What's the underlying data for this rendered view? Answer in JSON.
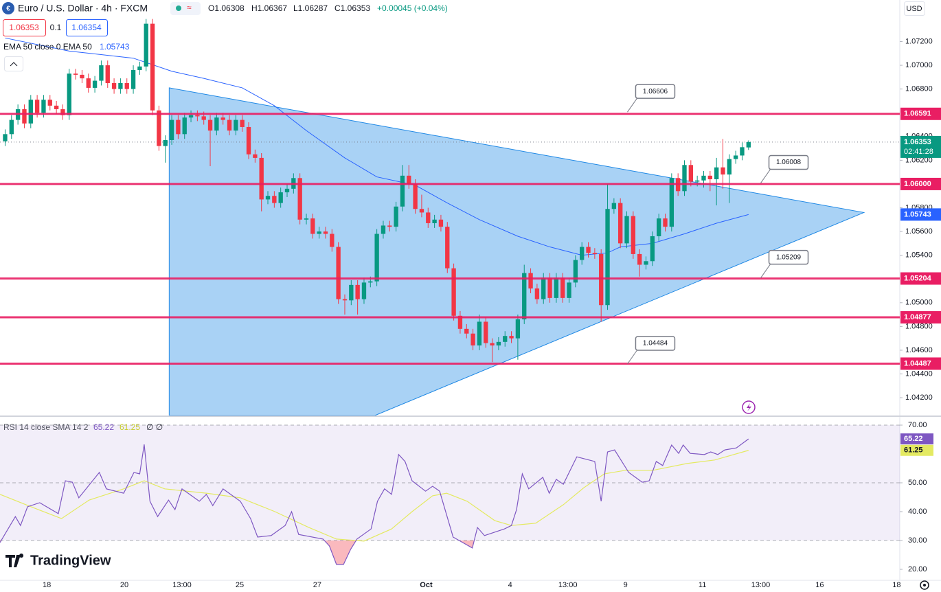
{
  "chart_data": [
    {
      "type": "candlestick",
      "title": "Euro / U.S. Dollar · 4h · FXCM",
      "ohlc_text": [
        "O1.06308",
        "H1.06367",
        "L1.06287",
        "C1.06353",
        "+0.00045 (+0.04%)"
      ],
      "sell_price": "1.06353",
      "spread": "0.1",
      "buy_price": "1.06354",
      "indicator": "EMA 50 close 0 EMA 50",
      "currency": "USD",
      "up_color": "#089981",
      "down_color": "#f23645",
      "xlim": [
        -0.8,
        139.6
      ],
      "ylim": [
        1.0405,
        1.0755
      ],
      "yticks": [
        {
          "value": 1.072,
          "label": "1.07200"
        },
        {
          "value": 1.07,
          "label": "1.07000"
        },
        {
          "value": 1.068,
          "label": "1.06800"
        },
        {
          "value": 1.064,
          "label": "1.06400"
        },
        {
          "value": 1.062,
          "label": "1.06200"
        },
        {
          "value": 1.058,
          "label": "1.05800"
        },
        {
          "value": 1.056,
          "label": "1.05600"
        },
        {
          "value": 1.054,
          "label": "1.05400"
        },
        {
          "value": 1.05,
          "label": "1.05000"
        },
        {
          "value": 1.048,
          "label": "1.04800"
        },
        {
          "value": 1.046,
          "label": "1.04600"
        },
        {
          "value": 1.044,
          "label": "1.04400"
        },
        {
          "value": 1.042,
          "label": "1.04200"
        }
      ],
      "candles": [
        [
          1.0636,
          1.0646,
          1.0632,
          1.0642
        ],
        [
          1.0642,
          1.0658,
          1.0638,
          1.0654
        ],
        [
          1.0654,
          1.0667,
          1.065,
          1.0663
        ],
        [
          1.0663,
          1.0667,
          1.0647,
          1.0651
        ],
        [
          1.0651,
          1.0675,
          1.0647,
          1.0671
        ],
        [
          1.0671,
          1.0675,
          1.0656,
          1.066
        ],
        [
          1.066,
          1.0675,
          1.0656,
          1.0671
        ],
        [
          1.0671,
          1.0675,
          1.0662,
          1.0666
        ],
        [
          1.0666,
          1.067,
          1.0659,
          1.0663
        ],
        [
          1.0663,
          1.0667,
          1.0654,
          1.0658
        ],
        [
          1.0658,
          1.0697,
          1.0654,
          1.0693
        ],
        [
          1.0693,
          1.0697,
          1.0688,
          1.0692
        ],
        [
          1.0692,
          1.0696,
          1.0685,
          1.0689
        ],
        [
          1.0689,
          1.0693,
          1.0677,
          1.0681
        ],
        [
          1.0681,
          1.0691,
          1.0677,
          1.0687
        ],
        [
          1.0687,
          1.0704,
          1.0683,
          1.07
        ],
        [
          1.07,
          1.0704,
          1.0681,
          1.0685
        ],
        [
          1.0685,
          1.0689,
          1.0676,
          1.068
        ],
        [
          1.068,
          1.0689,
          1.0676,
          1.0685
        ],
        [
          1.0685,
          1.0689,
          1.0676,
          1.068
        ],
        [
          1.068,
          1.07,
          1.0676,
          1.0696
        ],
        [
          1.0696,
          1.0703,
          1.0692,
          1.0699
        ],
        [
          1.0699,
          1.0739,
          1.0695,
          1.0735
        ],
        [
          1.0735,
          1.0739,
          1.0658,
          1.0662
        ],
        [
          1.0662,
          1.0666,
          1.0628,
          1.0632
        ],
        [
          1.0632,
          1.0641,
          1.0618,
          1.0637
        ],
        [
          1.0637,
          1.0658,
          1.0633,
          1.0654
        ],
        [
          1.0654,
          1.0658,
          1.0638,
          1.0642
        ],
        [
          1.0642,
          1.066,
          1.0638,
          1.0656
        ],
        [
          1.0656,
          1.0662,
          1.0652,
          1.0658
        ],
        [
          1.0658,
          1.0662,
          1.0653,
          1.0657
        ],
        [
          1.0657,
          1.0661,
          1.065,
          1.0654
        ],
        [
          1.0654,
          1.0658,
          1.0615,
          1.0645
        ],
        [
          1.0645,
          1.066,
          1.0641,
          1.0656
        ],
        [
          1.0656,
          1.066,
          1.065,
          1.0654
        ],
        [
          1.0654,
          1.0658,
          1.0641,
          1.0645
        ],
        [
          1.0645,
          1.0658,
          1.0641,
          1.0654
        ],
        [
          1.0654,
          1.0658,
          1.0644,
          1.0648
        ],
        [
          1.0648,
          1.0652,
          1.0621,
          1.0625
        ],
        [
          1.0625,
          1.0629,
          1.0618,
          1.0622
        ],
        [
          1.0622,
          1.0626,
          1.0577,
          1.0587
        ],
        [
          1.0587,
          1.0594,
          1.0583,
          1.059
        ],
        [
          1.059,
          1.0594,
          1.058,
          1.0584
        ],
        [
          1.0584,
          1.0597,
          1.058,
          1.0593
        ],
        [
          1.0593,
          1.06,
          1.0589,
          1.0596
        ],
        [
          1.0596,
          1.0609,
          1.0592,
          1.0605
        ],
        [
          1.0605,
          1.0609,
          1.0566,
          1.057
        ],
        [
          1.057,
          1.0575,
          1.0566,
          1.0571
        ],
        [
          1.0571,
          1.0575,
          1.0554,
          1.0558
        ],
        [
          1.0558,
          1.0564,
          1.0554,
          1.056
        ],
        [
          1.056,
          1.0564,
          1.0554,
          1.0558
        ],
        [
          1.0558,
          1.0562,
          1.0543,
          1.0547
        ],
        [
          1.0547,
          1.0551,
          1.0499,
          1.0503
        ],
        [
          1.0503,
          1.0507,
          1.049,
          1.0502
        ],
        [
          1.0502,
          1.0519,
          1.0498,
          1.0515
        ],
        [
          1.0515,
          1.0519,
          1.049,
          1.0503
        ],
        [
          1.0503,
          1.0521,
          1.0499,
          1.0517
        ],
        [
          1.0517,
          1.0522,
          1.0513,
          1.0518
        ],
        [
          1.0518,
          1.0562,
          1.0514,
          1.0558
        ],
        [
          1.0558,
          1.0569,
          1.0554,
          1.0565
        ],
        [
          1.0565,
          1.0569,
          1.056,
          1.0564
        ],
        [
          1.0564,
          1.0585,
          1.056,
          1.0581
        ],
        [
          1.0581,
          1.0616,
          1.0577,
          1.0607
        ],
        [
          1.0607,
          1.0616,
          1.0596,
          1.06
        ],
        [
          1.06,
          1.0604,
          1.0575,
          1.0579
        ],
        [
          1.0579,
          1.0591,
          1.0572,
          1.0576
        ],
        [
          1.0576,
          1.058,
          1.0563,
          1.0567
        ],
        [
          1.0567,
          1.0574,
          1.0563,
          1.057
        ],
        [
          1.057,
          1.0574,
          1.056,
          1.0564
        ],
        [
          1.0564,
          1.0568,
          1.0525,
          1.0529
        ],
        [
          1.0529,
          1.0533,
          1.0485,
          1.0489
        ],
        [
          1.0489,
          1.0493,
          1.0474,
          1.0478
        ],
        [
          1.0478,
          1.0482,
          1.047,
          1.0474
        ],
        [
          1.0474,
          1.0478,
          1.046,
          1.0464
        ],
        [
          1.0464,
          1.049,
          1.046,
          1.0484
        ],
        [
          1.0484,
          1.0488,
          1.0462,
          1.0466
        ],
        [
          1.0466,
          1.047,
          1.045,
          1.0464
        ],
        [
          1.0464,
          1.0471,
          1.046,
          1.0467
        ],
        [
          1.0467,
          1.0476,
          1.0463,
          1.0472
        ],
        [
          1.0472,
          1.0476,
          1.0466,
          1.047
        ],
        [
          1.047,
          1.049,
          1.0452,
          1.0486
        ],
        [
          1.0486,
          1.0532,
          1.0482,
          1.0525
        ],
        [
          1.0525,
          1.0529,
          1.0508,
          1.0512
        ],
        [
          1.0512,
          1.0516,
          1.0499,
          1.0503
        ],
        [
          1.0503,
          1.0525,
          1.0499,
          1.0521
        ],
        [
          1.0521,
          1.0525,
          1.05,
          1.0504
        ],
        [
          1.0504,
          1.0525,
          1.05,
          1.0521
        ],
        [
          1.0521,
          1.0525,
          1.05,
          1.0504
        ],
        [
          1.0504,
          1.0521,
          1.05,
          1.0517
        ],
        [
          1.0517,
          1.054,
          1.0513,
          1.0536
        ],
        [
          1.0536,
          1.0551,
          1.0532,
          1.0547
        ],
        [
          1.0547,
          1.0551,
          1.0538,
          1.0542
        ],
        [
          1.0542,
          1.0546,
          1.0537,
          1.0541
        ],
        [
          1.0541,
          1.0545,
          1.0484,
          1.0498
        ],
        [
          1.0498,
          1.06,
          1.0494,
          1.0579
        ],
        [
          1.0579,
          1.0588,
          1.0575,
          1.0584
        ],
        [
          1.0584,
          1.0588,
          1.0546,
          1.055
        ],
        [
          1.055,
          1.0577,
          1.0546,
          1.0573
        ],
        [
          1.0573,
          1.0577,
          1.0537,
          1.0541
        ],
        [
          1.0541,
          1.0545,
          1.0522,
          1.0532
        ],
        [
          1.0532,
          1.0539,
          1.0528,
          1.0535
        ],
        [
          1.0535,
          1.056,
          1.0531,
          1.0556
        ],
        [
          1.0556,
          1.0575,
          1.0552,
          1.0571
        ],
        [
          1.0571,
          1.0575,
          1.056,
          1.0564
        ],
        [
          1.0564,
          1.0609,
          1.056,
          1.0605
        ],
        [
          1.0605,
          1.0609,
          1.059,
          1.0594
        ],
        [
          1.0594,
          1.062,
          1.059,
          1.0616
        ],
        [
          1.0616,
          1.062,
          1.0598,
          1.0602
        ],
        [
          1.0602,
          1.0607,
          1.0598,
          1.0603
        ],
        [
          1.0603,
          1.0611,
          1.0597,
          1.0607
        ],
        [
          1.0607,
          1.0611,
          1.0594,
          1.0604
        ],
        [
          1.0604,
          1.0622,
          1.0582,
          1.0614
        ],
        [
          1.0614,
          1.0638,
          1.0596,
          1.0608
        ],
        [
          1.0608,
          1.0625,
          1.0584,
          1.0621
        ],
        [
          1.0621,
          1.0628,
          1.0617,
          1.0624
        ],
        [
          1.0624,
          1.0635,
          1.062,
          1.0631
        ],
        [
          1.06308,
          1.06367,
          1.06287,
          1.06353
        ]
      ],
      "countdown": "02:41:28",
      "ema": {
        "color": "#2962ff",
        "x": [
          0,
          10,
          20,
          26,
          31,
          37,
          42,
          47,
          53,
          58,
          64,
          69,
          74,
          80,
          85,
          90,
          94,
          96,
          101,
          106,
          111,
          116
        ],
        "values": [
          1.0723,
          1.0712,
          1.0706,
          1.0695,
          1.0689,
          1.0681,
          1.0666,
          1.0645,
          1.0622,
          1.0606,
          1.0599,
          1.0584,
          1.057,
          1.0556,
          1.0547,
          1.054,
          1.0542,
          1.0547,
          1.055,
          1.0558,
          1.0567,
          1.05743
        ]
      },
      "level_color": "#e91e63",
      "levels": [
        {
          "value": 1.06591,
          "label": "1.06591"
        },
        {
          "value": 1.06,
          "label": "1.06000"
        },
        {
          "value": 1.05204,
          "label": "1.05204"
        },
        {
          "value": 1.04877,
          "label": "1.04877"
        },
        {
          "value": 1.04487,
          "label": "1.04487"
        }
      ],
      "callouts": [
        {
          "x": 97.1,
          "y": 1.06606
        },
        {
          "x": 117.9,
          "y": 1.06008
        },
        {
          "x": 117.9,
          "y": 1.05209
        },
        {
          "x": 97.1,
          "y": 1.04484
        }
      ],
      "triangle": {
        "color": "#1e88e5",
        "x": [
          25.6,
          134.0,
          57.7,
          25.6
        ],
        "y": [
          1.0681,
          1.0576,
          1.0405,
          1.0405
        ]
      }
    },
    {
      "type": "line",
      "title": "RSI 14 close SMA 14 2",
      "flags": "∅ ∅",
      "xlim": [
        -0.8,
        139.6
      ],
      "ylim": [
        16.19,
        72.86
      ],
      "yticks": [
        {
          "value": 70,
          "label": "70.00"
        },
        {
          "value": 50,
          "label": "50.00"
        },
        {
          "value": 40,
          "label": "40.00"
        },
        {
          "value": 30,
          "label": "30.00"
        },
        {
          "value": 20,
          "label": "20.00"
        }
      ],
      "band": [
        30,
        70
      ],
      "midline": 50,
      "xticks": [
        {
          "value": 6.5,
          "label": "18"
        },
        {
          "value": 18.6,
          "label": "20"
        },
        {
          "value": 27.6,
          "label": "13:00"
        },
        {
          "value": 36.6,
          "label": "25"
        },
        {
          "value": 48.7,
          "label": "27"
        },
        {
          "value": 65.7,
          "label": "Oct"
        },
        {
          "value": 78.8,
          "label": "4"
        },
        {
          "value": 87.8,
          "label": "13:00"
        },
        {
          "value": 96.8,
          "label": "9"
        },
        {
          "value": 108.8,
          "label": "11"
        },
        {
          "value": 117.9,
          "label": "13:00"
        },
        {
          "value": 127.1,
          "label": "16"
        },
        {
          "value": 139.1,
          "label": "18"
        }
      ],
      "series": [
        {
          "color": "#7e57c2",
          "x": [
            -0.8,
            1.6,
            2.4,
            3.5,
            5.4,
            8.3,
            9.4,
            10.5,
            11.5,
            14.7,
            15.8,
            18.5,
            20.1,
            21.0,
            21.7,
            22.6,
            23.8,
            25.5,
            26.5,
            27.6,
            30.3,
            31.4,
            32.4,
            34.0,
            36.7,
            38.3,
            39.4,
            41.5,
            43.7,
            44.7,
            45.8,
            49.6,
            50.6,
            51.7,
            52.8,
            53.9,
            54.9,
            57.1,
            58.1,
            59.2,
            60.3,
            61.4,
            62.4,
            63.5,
            65.6,
            66.7,
            67.8,
            68.9,
            69.9,
            72.9,
            73.7,
            74.8,
            77.9,
            79.0,
            79.8,
            80.7,
            81.7,
            83.9,
            84.9,
            86.0,
            87.1,
            89.2,
            92.0,
            93.0,
            94.0,
            95.1,
            97.3,
            99.4,
            100.5,
            101.6,
            102.6,
            104.0,
            105.1,
            105.8,
            106.9,
            109.1,
            110.1,
            111.2,
            112.3,
            114.1,
            116
          ],
          "values": [
            29.3,
            38.3,
            35.2,
            41.7,
            43.1,
            39.3,
            50.7,
            50.2,
            44.8,
            53.6,
            47.9,
            46.4,
            53.6,
            53.1,
            63.3,
            43.6,
            38.3,
            44.0,
            40.7,
            47.9,
            43.6,
            46.0,
            42.1,
            47.9,
            43.6,
            37.6,
            31.2,
            31.7,
            35.2,
            40.0,
            32.1,
            30.5,
            28.1,
            21.7,
            21.7,
            26.9,
            30.5,
            34.0,
            43.6,
            47.9,
            46.0,
            59.8,
            57.4,
            50.7,
            47.1,
            48.8,
            47.1,
            38.8,
            31.2,
            27.4,
            34.5,
            31.7,
            34.0,
            35.2,
            40.7,
            53.1,
            47.9,
            51.9,
            46.4,
            51.2,
            49.5,
            59.0,
            57.4,
            43.6,
            60.7,
            61.4,
            53.6,
            50.2,
            50.7,
            57.4,
            56.0,
            63.1,
            60.2,
            63.1,
            60.2,
            59.8,
            60.7,
            59.8,
            61.4,
            62.1,
            65.22
          ]
        },
        {
          "color": "#e4ea62",
          "x": [
            -0.8,
            4.6,
            8.8,
            13.1,
            18.5,
            21.7,
            24.9,
            31.4,
            36.7,
            42.1,
            47.4,
            51.7,
            56.0,
            60.3,
            63.5,
            66.7,
            68.9,
            72.1,
            76.4,
            79.0,
            82.8,
            87.1,
            90.3,
            93.5,
            96.7,
            101.0,
            106.4,
            110.7,
            116
          ],
          "values": [
            46.0,
            41.2,
            37.6,
            44.0,
            47.9,
            50.7,
            47.9,
            46.4,
            44.8,
            40.0,
            34.5,
            30.5,
            29.8,
            34.0,
            40.0,
            45.5,
            46.4,
            43.6,
            36.9,
            35.2,
            36.0,
            42.4,
            48.3,
            53.1,
            54.3,
            54.3,
            56.7,
            57.9,
            61.25
          ]
        }
      ]
    }
  ],
  "branding": "TradingView"
}
